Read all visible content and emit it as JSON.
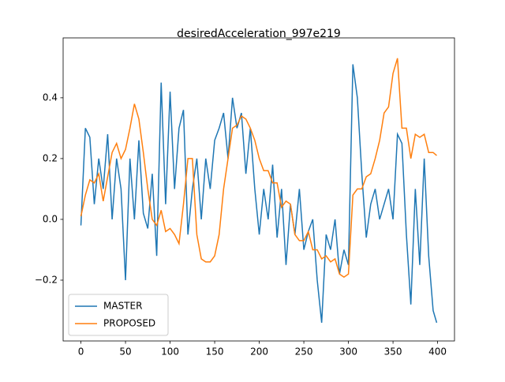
{
  "chart_data": {
    "type": "line",
    "title": "desiredAcceleration_997e219",
    "x": [
      0,
      5,
      10,
      15,
      20,
      25,
      30,
      35,
      40,
      45,
      50,
      55,
      60,
      65,
      70,
      75,
      80,
      85,
      90,
      95,
      100,
      105,
      110,
      115,
      120,
      125,
      130,
      135,
      140,
      145,
      150,
      155,
      160,
      165,
      170,
      175,
      180,
      185,
      190,
      195,
      200,
      205,
      210,
      215,
      220,
      225,
      230,
      235,
      240,
      245,
      250,
      255,
      260,
      265,
      270,
      275,
      280,
      285,
      290,
      295,
      300,
      305,
      310,
      315,
      320,
      325,
      330,
      335,
      340,
      345,
      350,
      355,
      360,
      365,
      370,
      375,
      380,
      385,
      390,
      395,
      399
    ],
    "series": [
      {
        "name": "MASTER",
        "color": "#1f77b4",
        "values": [
          -0.02,
          0.3,
          0.27,
          0.05,
          0.2,
          0.1,
          0.28,
          0.0,
          0.2,
          0.1,
          -0.2,
          0.2,
          0.0,
          0.26,
          0.02,
          -0.03,
          0.15,
          -0.12,
          0.45,
          0.05,
          0.42,
          0.1,
          0.3,
          0.36,
          -0.05,
          0.1,
          0.2,
          0.0,
          0.2,
          0.1,
          0.26,
          0.3,
          0.35,
          0.2,
          0.4,
          0.3,
          0.35,
          0.15,
          0.3,
          0.1,
          -0.05,
          0.1,
          0.0,
          0.18,
          -0.06,
          0.1,
          -0.15,
          0.05,
          -0.05,
          0.1,
          -0.1,
          -0.04,
          0.0,
          -0.2,
          -0.34,
          -0.05,
          -0.1,
          0.0,
          -0.18,
          -0.1,
          -0.15,
          0.51,
          0.4,
          0.15,
          -0.06,
          0.05,
          0.1,
          0.0,
          0.05,
          0.1,
          0.0,
          0.28,
          0.25,
          -0.05,
          -0.28,
          0.1,
          -0.15,
          0.2,
          -0.12,
          -0.3,
          -0.34
        ]
      },
      {
        "name": "PROPOSED",
        "color": "#ff7f0e",
        "values": [
          0.01,
          0.08,
          0.13,
          0.12,
          0.15,
          0.06,
          0.14,
          0.22,
          0.25,
          0.2,
          0.23,
          0.3,
          0.38,
          0.33,
          0.22,
          0.1,
          0.0,
          -0.02,
          0.03,
          -0.04,
          -0.03,
          -0.05,
          -0.08,
          0.05,
          0.2,
          0.2,
          -0.05,
          -0.13,
          -0.14,
          -0.14,
          -0.12,
          -0.05,
          0.1,
          0.2,
          0.3,
          0.31,
          0.34,
          0.33,
          0.3,
          0.26,
          0.2,
          0.16,
          0.16,
          0.12,
          0.12,
          0.04,
          0.06,
          0.05,
          -0.05,
          -0.07,
          -0.07,
          -0.04,
          -0.1,
          -0.1,
          -0.13,
          -0.12,
          -0.14,
          -0.13,
          -0.18,
          -0.19,
          -0.18,
          0.08,
          0.1,
          0.1,
          0.14,
          0.15,
          0.2,
          0.26,
          0.35,
          0.37,
          0.48,
          0.53,
          0.3,
          0.3,
          0.2,
          0.28,
          0.27,
          0.28,
          0.22,
          0.22,
          0.21
        ]
      }
    ],
    "xlim": [
      -19.95,
      418.95
    ],
    "xticks": [
      0,
      50,
      100,
      150,
      200,
      250,
      300,
      350,
      400
    ],
    "ylim": [
      -0.4,
      0.597
    ],
    "yticks": [
      {
        "value": -0.2,
        "label": "−0.2"
      },
      {
        "value": 0,
        "label": "0.0"
      },
      0.2,
      0.4
    ],
    "legend": "lower left"
  }
}
